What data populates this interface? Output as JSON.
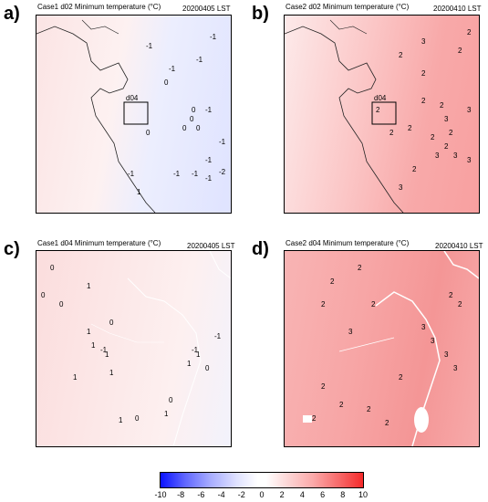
{
  "panels": [
    {
      "letter": "a)",
      "title": "Case1 d02 Minimum temperature (°C)",
      "date": "20200405 LST",
      "box_label": "d04",
      "labels": [
        "-1",
        "-1",
        "-1",
        "-1",
        "0",
        "0",
        "0",
        "-1",
        "-1",
        "-1",
        "-1",
        "-2",
        "-1",
        "-1",
        "0",
        "0",
        "0",
        "1",
        "-1"
      ]
    },
    {
      "letter": "b)",
      "title": "Case2 d02 Minimum temperature (°C)",
      "date": "20200410 LST",
      "box_label": "d04",
      "labels": [
        "3",
        "2",
        "2",
        "2",
        "2",
        "3",
        "3",
        "2",
        "2",
        "2",
        "3",
        "3",
        "2",
        "3",
        "2",
        "2",
        "2",
        "2",
        "3",
        "2"
      ]
    },
    {
      "letter": "c)",
      "title": "Case1 d04 Minimum temperature (°C)",
      "date": "20200405 LST",
      "labels": [
        "0",
        "0",
        "0",
        "1",
        "1",
        "1",
        "1",
        "-1",
        "0",
        "1",
        "1",
        "-1",
        "1",
        "0",
        "1",
        "1",
        "0",
        "1",
        "0",
        "-1"
      ]
    },
    {
      "letter": "d)",
      "title": "Case2 d04 Minimum temperature (°C)",
      "date": "20200410 LST",
      "labels": [
        "2",
        "2",
        "2",
        "2",
        "3",
        "3",
        "3",
        "3",
        "2",
        "2",
        "3",
        "2",
        "2",
        "2",
        "2",
        "2",
        "2"
      ]
    }
  ],
  "colorbar": {
    "ticks": [
      "-10",
      "-8",
      "-6",
      "-4",
      "-2",
      "0",
      "2",
      "4",
      "6",
      "8",
      "10"
    ],
    "colors": [
      "#0a12ff",
      "#ffffff",
      "#f52a2a"
    ]
  }
}
